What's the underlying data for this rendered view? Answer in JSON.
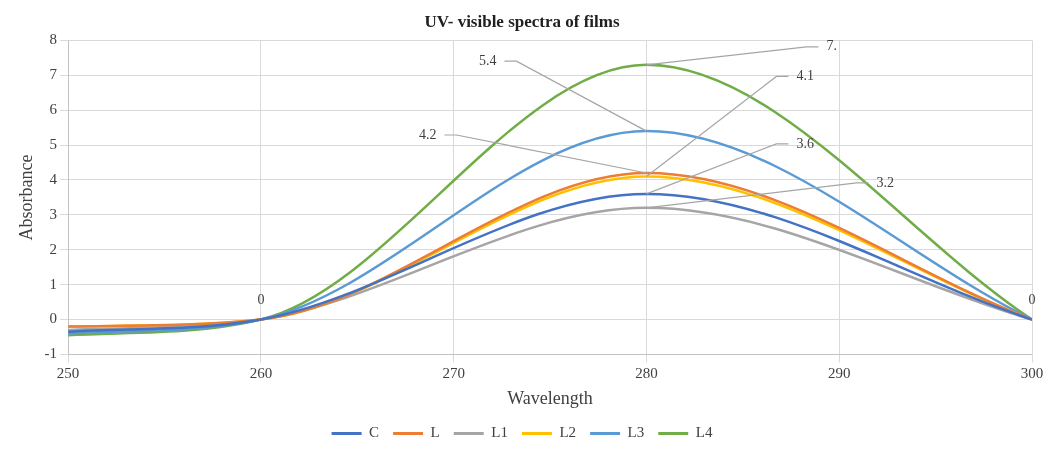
{
  "chart_data": {
    "type": "line",
    "title": "UV- visible spectra of films",
    "xlabel": "Wavelength",
    "ylabel": "Absorbance",
    "x": [
      250,
      260,
      280,
      300
    ],
    "xlim": [
      250,
      300
    ],
    "xticks": [
      250,
      260,
      270,
      280,
      290,
      300
    ],
    "ylim": [
      -1,
      8
    ],
    "yticks": [
      -1,
      0,
      1,
      2,
      3,
      4,
      5,
      6,
      7,
      8
    ],
    "grid": true,
    "legend": "bottom",
    "marker": "none",
    "line_style": "solid",
    "series": [
      {
        "name": "C",
        "color": "#4472c4",
        "values": [
          -0.35,
          0,
          3.6,
          0
        ],
        "value_labels": [
          null,
          null,
          "3.6",
          null
        ]
      },
      {
        "name": "L",
        "color": "#ed7d31",
        "values": [
          -0.2,
          0,
          4.2,
          0
        ],
        "value_labels": [
          null,
          null,
          "4.2",
          null
        ]
      },
      {
        "name": "L1",
        "color": "#a5a5a5",
        "values": [
          -0.3,
          0,
          3.2,
          0
        ],
        "value_labels": [
          null,
          null,
          "3.2",
          null
        ]
      },
      {
        "name": "L2",
        "color": "#ffc000",
        "values": [
          -0.2,
          0,
          4.1,
          0
        ],
        "value_labels": [
          null,
          null,
          "4.1",
          null
        ]
      },
      {
        "name": "L3",
        "color": "#5b9bd5",
        "values": [
          -0.4,
          0,
          5.4,
          0
        ],
        "value_labels": [
          null,
          null,
          "5.4",
          null
        ]
      },
      {
        "name": "L4",
        "color": "#70ad47",
        "values": [
          -0.45,
          0,
          7.3,
          0
        ],
        "value_labels": [
          null,
          "0",
          "7.",
          "0"
        ]
      }
    ]
  }
}
